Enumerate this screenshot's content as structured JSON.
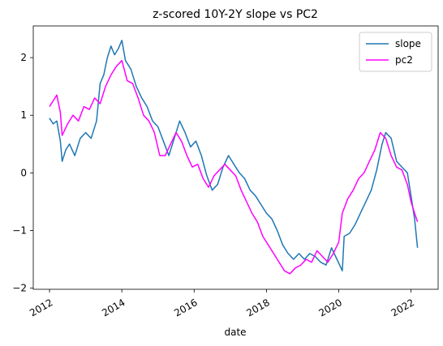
{
  "chart_data": {
    "type": "line",
    "title": "z-scored 10Y-2Y slope vs PC2",
    "xlabel": "date",
    "ylabel": "",
    "xlim": [
      2011.55,
      2022.75
    ],
    "ylim": [
      -2.02,
      2.55
    ],
    "x_ticks": [
      2012,
      2014,
      2016,
      2018,
      2020,
      2022
    ],
    "x_tick_labels": [
      "2012",
      "2014",
      "2016",
      "2018",
      "2020",
      "2022"
    ],
    "y_ticks": [
      -2,
      -1,
      0,
      1,
      2
    ],
    "y_tick_labels": [
      "−2",
      "−1",
      "0",
      "1",
      "2"
    ],
    "grid": false,
    "legend_position": "top-right",
    "series": [
      {
        "name": "slope",
        "color": "#1f77b4",
        "x": [
          2012.0,
          2012.1,
          2012.2,
          2012.3,
          2012.35,
          2012.45,
          2012.55,
          2012.7,
          2012.85,
          2013.0,
          2013.15,
          2013.3,
          2013.4,
          2013.5,
          2013.6,
          2013.7,
          2013.8,
          2013.9,
          2014.0,
          2014.1,
          2014.25,
          2014.4,
          2014.55,
          2014.7,
          2014.85,
          2015.0,
          2015.15,
          2015.3,
          2015.45,
          2015.6,
          2015.75,
          2015.9,
          2016.05,
          2016.2,
          2016.35,
          2016.5,
          2016.65,
          2016.8,
          2016.95,
          2017.1,
          2017.25,
          2017.4,
          2017.55,
          2017.7,
          2017.85,
          2018.0,
          2018.15,
          2018.3,
          2018.45,
          2018.6,
          2018.75,
          2018.9,
          2019.05,
          2019.2,
          2019.35,
          2019.5,
          2019.65,
          2019.8,
          2019.95,
          2020.1,
          2020.15,
          2020.3,
          2020.45,
          2020.6,
          2020.75,
          2020.9,
          2021.05,
          2021.2,
          2021.3,
          2021.45,
          2021.6,
          2021.75,
          2021.9,
          2022.0,
          2022.1,
          2022.18
        ],
        "values": [
          0.95,
          0.85,
          0.9,
          0.55,
          0.2,
          0.4,
          0.5,
          0.3,
          0.6,
          0.7,
          0.6,
          0.9,
          1.55,
          1.7,
          2.0,
          2.2,
          2.05,
          2.15,
          2.3,
          1.95,
          1.8,
          1.5,
          1.3,
          1.15,
          0.9,
          0.8,
          0.55,
          0.3,
          0.6,
          0.9,
          0.7,
          0.45,
          0.55,
          0.3,
          -0.05,
          -0.3,
          -0.2,
          0.1,
          0.3,
          0.15,
          0.0,
          -0.1,
          -0.3,
          -0.4,
          -0.55,
          -0.7,
          -0.8,
          -1.0,
          -1.25,
          -1.4,
          -1.5,
          -1.4,
          -1.5,
          -1.4,
          -1.45,
          -1.55,
          -1.6,
          -1.3,
          -1.5,
          -1.7,
          -1.1,
          -1.05,
          -0.9,
          -0.7,
          -0.5,
          -0.3,
          0.05,
          0.5,
          0.7,
          0.6,
          0.2,
          0.1,
          0.0,
          -0.4,
          -0.8,
          -1.3
        ]
      },
      {
        "name": "pc2",
        "color": "#ff00ff",
        "x": [
          2012.0,
          2012.1,
          2012.2,
          2012.3,
          2012.35,
          2012.5,
          2012.65,
          2012.8,
          2012.95,
          2013.1,
          2013.25,
          2013.4,
          2013.55,
          2013.7,
          2013.85,
          2014.0,
          2014.15,
          2014.3,
          2014.45,
          2014.6,
          2014.75,
          2014.9,
          2015.05,
          2015.2,
          2015.35,
          2015.5,
          2015.65,
          2015.8,
          2015.95,
          2016.1,
          2016.25,
          2016.4,
          2016.55,
          2016.7,
          2016.85,
          2017.0,
          2017.15,
          2017.3,
          2017.45,
          2017.6,
          2017.75,
          2017.9,
          2018.05,
          2018.2,
          2018.35,
          2018.5,
          2018.65,
          2018.8,
          2018.95,
          2019.1,
          2019.25,
          2019.4,
          2019.55,
          2019.7,
          2019.85,
          2020.0,
          2020.1,
          2020.25,
          2020.4,
          2020.55,
          2020.7,
          2020.85,
          2021.0,
          2021.15,
          2021.3,
          2021.45,
          2021.6,
          2021.75,
          2021.9,
          2022.0,
          2022.1,
          2022.18
        ],
        "values": [
          1.15,
          1.25,
          1.35,
          1.05,
          0.65,
          0.85,
          1.0,
          0.9,
          1.15,
          1.1,
          1.3,
          1.2,
          1.5,
          1.7,
          1.85,
          1.95,
          1.6,
          1.55,
          1.3,
          1.0,
          0.9,
          0.7,
          0.3,
          0.3,
          0.5,
          0.7,
          0.55,
          0.3,
          0.1,
          0.15,
          -0.1,
          -0.25,
          -0.05,
          0.05,
          0.15,
          0.05,
          -0.05,
          -0.3,
          -0.5,
          -0.7,
          -0.85,
          -1.1,
          -1.25,
          -1.4,
          -1.55,
          -1.7,
          -1.75,
          -1.65,
          -1.6,
          -1.5,
          -1.55,
          -1.35,
          -1.45,
          -1.55,
          -1.4,
          -1.2,
          -0.7,
          -0.45,
          -0.3,
          -0.1,
          0.0,
          0.2,
          0.4,
          0.7,
          0.6,
          0.3,
          0.1,
          0.05,
          -0.2,
          -0.5,
          -0.7,
          -0.85
        ]
      }
    ]
  }
}
